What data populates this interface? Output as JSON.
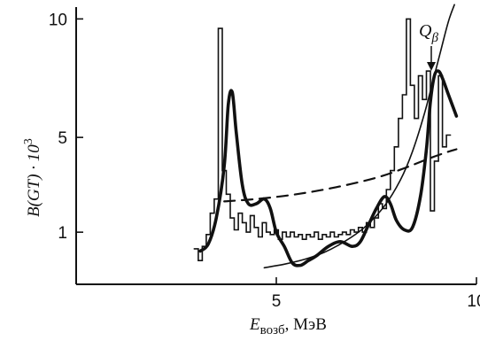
{
  "chart_data": {
    "type": "line",
    "title": "",
    "xlabel_main": "E",
    "xlabel_sub": "возб",
    "xlabel_unit": ", МэВ",
    "ylabel_text": "B(GT) · 10",
    "ylabel_sup": "3",
    "xlim": [
      0,
      10
    ],
    "ylim": [
      -1.2,
      10.5
    ],
    "xticks": [
      5,
      10
    ],
    "yticks": [
      1,
      5,
      10
    ],
    "xtick_labels": [
      "5",
      "10"
    ],
    "ytick_labels": [
      "1",
      "5",
      "10"
    ],
    "annotation": {
      "text": "Q",
      "sub": "β",
      "x": 9.15,
      "y": 7.8
    },
    "series": [
      {
        "style": "histogram",
        "x": [
          3.0,
          3.1,
          3.2,
          3.3,
          3.4,
          3.5,
          3.6,
          3.7,
          3.8,
          3.9,
          4.0,
          4.1,
          4.2,
          4.3,
          4.4,
          4.5,
          4.6,
          4.7,
          4.8,
          4.9,
          5.0,
          5.1,
          5.2,
          5.3,
          5.4,
          5.5,
          5.6,
          5.7,
          5.8,
          5.9,
          6.0,
          6.1,
          6.2,
          6.3,
          6.4,
          6.5,
          6.6,
          6.7,
          6.8,
          6.9,
          7.0,
          7.1,
          7.2,
          7.3,
          7.4,
          7.5,
          7.6,
          7.7,
          7.8,
          7.9,
          8.0,
          8.1,
          8.2,
          8.3,
          8.4,
          8.5,
          8.6,
          8.7,
          8.8,
          8.9,
          9.0,
          9.1,
          9.2,
          9.3
        ],
        "values": [
          0.3,
          -0.2,
          0.4,
          0.9,
          1.8,
          2.4,
          9.6,
          3.6,
          2.6,
          1.6,
          1.1,
          1.8,
          1.4,
          1.0,
          1.7,
          1.2,
          0.8,
          1.4,
          1.0,
          0.9,
          1.1,
          0.7,
          1.0,
          0.8,
          1.0,
          0.8,
          0.9,
          0.7,
          0.9,
          0.8,
          1.0,
          0.7,
          0.9,
          0.8,
          1.0,
          0.8,
          0.9,
          1.0,
          0.9,
          1.1,
          1.0,
          1.2,
          1.0,
          1.4,
          1.2,
          1.6,
          2.2,
          2.0,
          2.8,
          3.6,
          4.6,
          5.8,
          6.8,
          10.0,
          7.2,
          5.8,
          7.6,
          6.6,
          7.8,
          1.9,
          4.0,
          7.6,
          4.6,
          5.1
        ]
      },
      {
        "style": "thick",
        "x": [
          3.1,
          3.3,
          3.5,
          3.7,
          3.8,
          3.9,
          4.0,
          4.15,
          4.3,
          4.5,
          4.7,
          4.85,
          5.0,
          5.2,
          5.4,
          5.6,
          5.8,
          6.0,
          6.3,
          6.6,
          6.9,
          7.1,
          7.3,
          7.5,
          7.7,
          7.85,
          8.0,
          8.2,
          8.4,
          8.6,
          8.75,
          8.85,
          8.95,
          9.05,
          9.15,
          9.3,
          9.5
        ],
        "values": [
          0.2,
          0.5,
          1.6,
          3.8,
          6.4,
          6.9,
          5.2,
          3.0,
          2.2,
          2.2,
          2.4,
          2.0,
          1.0,
          0.4,
          -0.3,
          -0.4,
          -0.2,
          0.0,
          0.4,
          0.6,
          0.4,
          0.6,
          1.3,
          2.0,
          2.5,
          2.2,
          1.5,
          1.1,
          1.2,
          2.5,
          4.5,
          6.5,
          7.6,
          7.8,
          7.5,
          6.8,
          5.9
        ]
      },
      {
        "style": "dashed",
        "x": [
          3.7,
          4.5,
          5.5,
          6.5,
          7.5,
          8.2,
          8.8,
          9.3,
          9.5
        ],
        "values": [
          2.3,
          2.4,
          2.6,
          2.9,
          3.3,
          3.7,
          4.1,
          4.4,
          4.5
        ]
      },
      {
        "style": "thin",
        "x": [
          4.7,
          5.2,
          5.7,
          6.2,
          6.7,
          7.2,
          7.7,
          8.1,
          8.4,
          8.7,
          8.9,
          9.1,
          9.3,
          9.45
        ],
        "values": [
          -0.5,
          -0.35,
          -0.15,
          0.15,
          0.6,
          1.2,
          2.1,
          3.2,
          4.4,
          6.0,
          7.3,
          8.6,
          9.9,
          10.6
        ]
      }
    ]
  }
}
